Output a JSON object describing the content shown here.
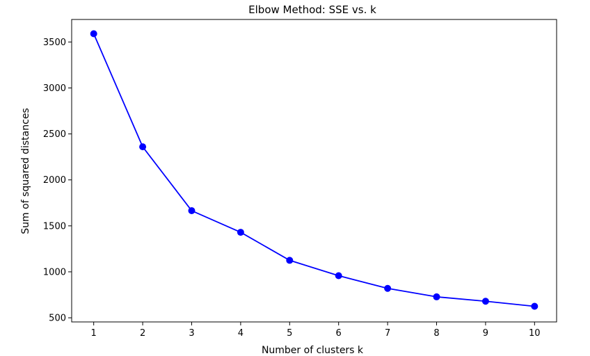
{
  "chart_data": {
    "type": "line",
    "title": "Elbow Method: SSE vs. k",
    "xlabel": "Number of clusters k",
    "ylabel": "Sum of squared distances",
    "x": [
      1,
      2,
      3,
      4,
      5,
      6,
      7,
      8,
      9,
      10
    ],
    "series": [
      {
        "values": [
          3590,
          2360,
          1665,
          1430,
          1125,
          958,
          820,
          728,
          680,
          625
        ],
        "color": "#0000ff",
        "marker": "circle"
      }
    ],
    "xticks": [
      "1",
      "2",
      "3",
      "4",
      "5",
      "6",
      "7",
      "8",
      "9",
      "10"
    ],
    "yticks": [
      "500",
      "1000",
      "1500",
      "2000",
      "2500",
      "3000",
      "3500"
    ],
    "xlim": [
      0.55,
      10.45
    ],
    "ylim": [
      455,
      3745
    ],
    "grid": false
  }
}
